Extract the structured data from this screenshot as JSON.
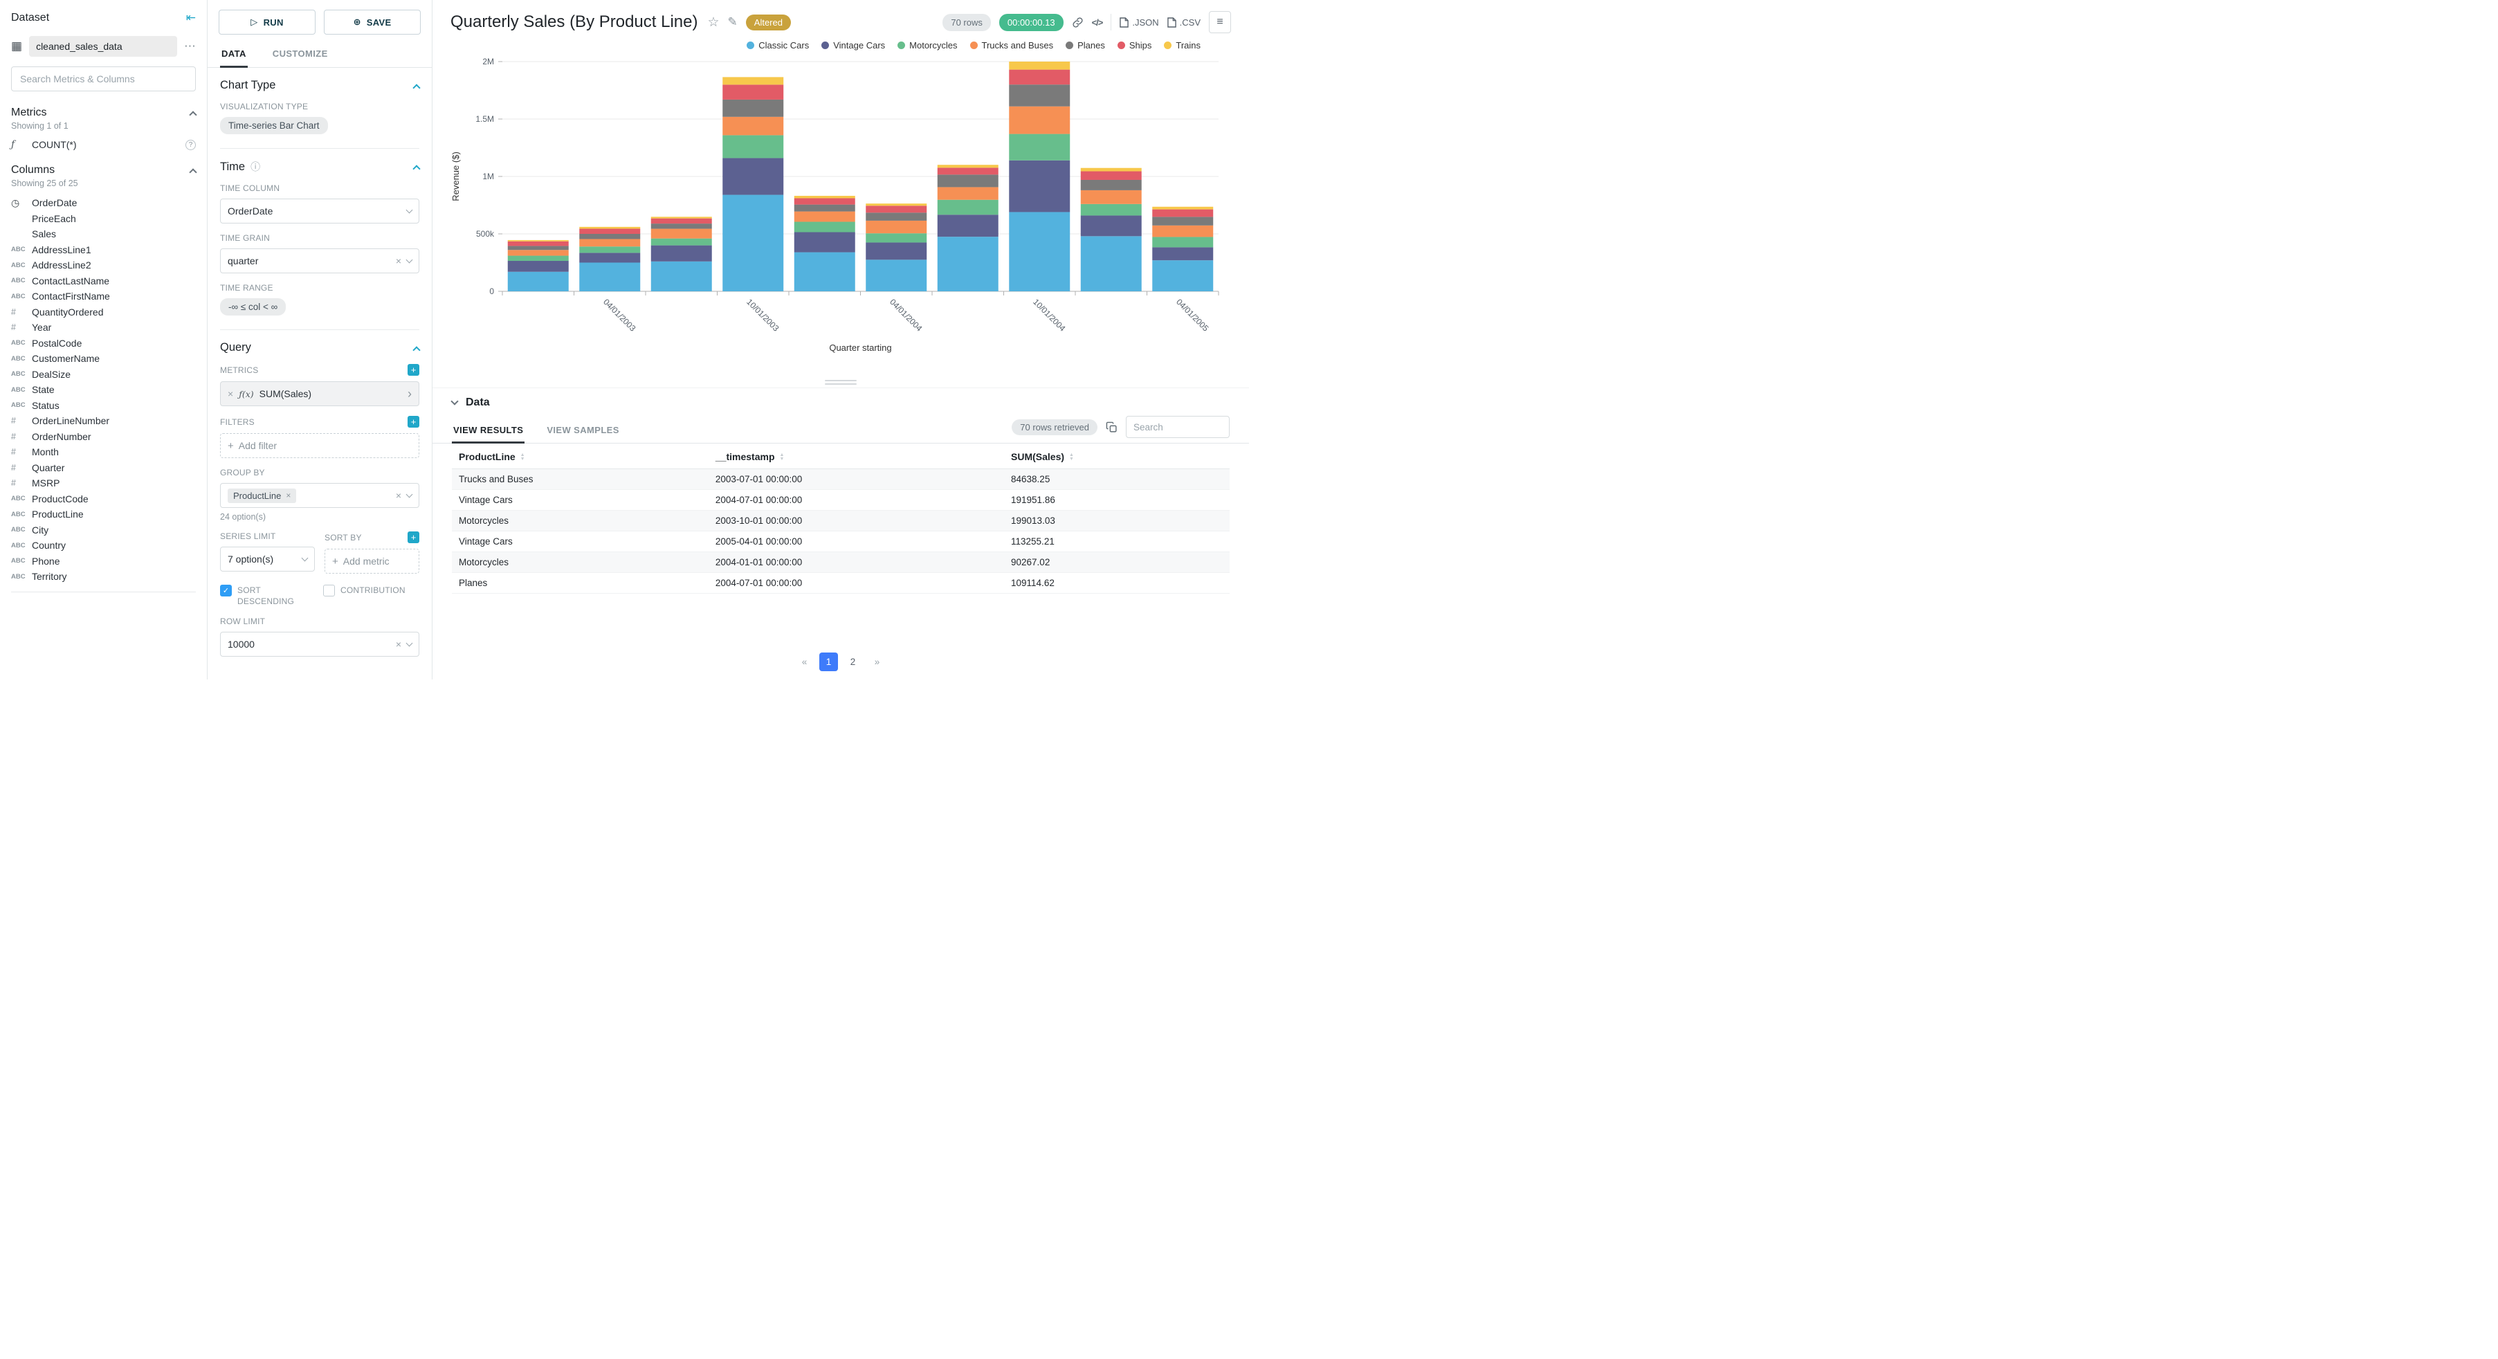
{
  "colors": {
    "accent": "#20A7C9",
    "altered_badge": "#C9A23C",
    "timer_badge": "#45BB8E",
    "pagination_active": "#3E7BFA",
    "checkbox_checked": "#2E9DF5"
  },
  "icons": {
    "collapse": "⇤",
    "dataset_table": "▦",
    "more": "⋯",
    "function": "ƒ",
    "help": "?",
    "clock": "◷",
    "abc": "ABC",
    "hash": "#",
    "play": "▷",
    "plus_circle": "⊕",
    "star": "☆",
    "edit": "✎",
    "code": "</>",
    "menu": "≡",
    "info": "ⓘ",
    "remove": "×",
    "plus": "+",
    "check": "✓",
    "sort_asc": "▲",
    "sort_desc": "▼",
    "caret_right": "›"
  },
  "dataset_panel": {
    "header": "Dataset",
    "dataset_name": "cleaned_sales_data",
    "search_placeholder": "Search Metrics & Columns",
    "metrics_title": "Metrics",
    "metrics_showing": "Showing 1 of 1",
    "metric_items": [
      {
        "icon": "function",
        "name": "COUNT(*)"
      }
    ],
    "columns_title": "Columns",
    "columns_showing": "Showing 25 of 25",
    "column_items": [
      {
        "icon": "clock",
        "name": "OrderDate"
      },
      {
        "icon": "none",
        "name": "PriceEach"
      },
      {
        "icon": "none",
        "name": "Sales"
      },
      {
        "icon": "abc",
        "name": "AddressLine1"
      },
      {
        "icon": "abc",
        "name": "AddressLine2"
      },
      {
        "icon": "abc",
        "name": "ContactLastName"
      },
      {
        "icon": "abc",
        "name": "ContactFirstName"
      },
      {
        "icon": "num",
        "name": "QuantityOrdered"
      },
      {
        "icon": "num",
        "name": "Year"
      },
      {
        "icon": "abc",
        "name": "PostalCode"
      },
      {
        "icon": "abc",
        "name": "CustomerName"
      },
      {
        "icon": "abc",
        "name": "DealSize"
      },
      {
        "icon": "abc",
        "name": "State"
      },
      {
        "icon": "abc",
        "name": "Status"
      },
      {
        "icon": "num",
        "name": "OrderLineNumber"
      },
      {
        "icon": "num",
        "name": "OrderNumber"
      },
      {
        "icon": "num",
        "name": "Month"
      },
      {
        "icon": "num",
        "name": "Quarter"
      },
      {
        "icon": "num",
        "name": "MSRP"
      },
      {
        "icon": "abc",
        "name": "ProductCode"
      },
      {
        "icon": "abc",
        "name": "ProductLine"
      },
      {
        "icon": "abc",
        "name": "City"
      },
      {
        "icon": "abc",
        "name": "Country"
      },
      {
        "icon": "abc",
        "name": "Phone"
      },
      {
        "icon": "abc",
        "name": "Territory"
      }
    ]
  },
  "control_panel": {
    "run_label": "RUN",
    "save_label": "SAVE",
    "tabs": [
      {
        "label": "DATA",
        "active": true
      },
      {
        "label": "CUSTOMIZE",
        "active": false
      }
    ],
    "chart_type": {
      "title": "Chart Type",
      "viz_type_label": "VISUALIZATION TYPE",
      "viz_type_value": "Time-series Bar Chart"
    },
    "time": {
      "title": "Time",
      "time_column_label": "TIME COLUMN",
      "time_column_value": "OrderDate",
      "time_grain_label": "TIME GRAIN",
      "time_grain_value": "quarter",
      "time_range_label": "TIME RANGE",
      "time_range_value": "-∞ ≤ col < ∞"
    },
    "query": {
      "title": "Query",
      "metrics_label": "METRICS",
      "metric_prefix": "ƒ(x)",
      "metric_value": "SUM(Sales)",
      "filters_label": "FILTERS",
      "add_filter_label": "Add filter",
      "group_by_label": "GROUP BY",
      "group_by_tag": "ProductLine",
      "group_by_hint": "24 option(s)",
      "series_limit_label": "SERIES LIMIT",
      "series_limit_value": "7 option(s)",
      "sort_by_label": "SORT BY",
      "add_metric_label": "Add metric",
      "sort_descending_label": "SORT DESCENDING",
      "sort_descending_checked": true,
      "contribution_label": "CONTRIBUTION",
      "contribution_checked": false,
      "row_limit_label": "ROW LIMIT",
      "row_limit_value": "10000"
    }
  },
  "header": {
    "title": "Quarterly Sales (By Product Line)",
    "altered_badge": "Altered",
    "rows_badge": "70 rows",
    "timer_badge": "00:00:00.13",
    "json_label": ".JSON",
    "csv_label": ".CSV"
  },
  "chart_data": {
    "type": "bar",
    "stacked": true,
    "title": "Quarterly Sales (By Product Line)",
    "xlabel": "Quarter starting",
    "ylabel": "Revenue ($)",
    "ylim": [
      0,
      2000000
    ],
    "grid": true,
    "legend_position": "top-right",
    "y_ticks": [
      {
        "v": 0,
        "label": "0"
      },
      {
        "v": 500000,
        "label": "500k"
      },
      {
        "v": 1000000,
        "label": "1M"
      },
      {
        "v": 1500000,
        "label": "1.5M"
      },
      {
        "v": 2000000,
        "label": "2M"
      }
    ],
    "categories": [
      "2003-01-01",
      "2003-04-01",
      "2003-07-01",
      "2003-10-01",
      "2004-01-01",
      "2004-04-01",
      "2004-07-01",
      "2004-10-01",
      "2005-01-01",
      "2005-04-01"
    ],
    "x_tick_labels": [
      "",
      "04/01/2003",
      "",
      "10/01/2003",
      "",
      "04/01/2004",
      "",
      "10/01/2004",
      "",
      "04/01/2005"
    ],
    "series": [
      {
        "name": "Classic Cars",
        "color": "#53B2DE",
        "values": [
          170000,
          250000,
          260000,
          840000,
          340000,
          275000,
          475000,
          690000,
          480000,
          270000
        ]
      },
      {
        "name": "Vintage Cars",
        "color": "#5C6191",
        "values": [
          95000,
          85000,
          140000,
          320000,
          175000,
          150000,
          191951.86,
          450000,
          180000,
          113255.21
        ]
      },
      {
        "name": "Motorcycles",
        "color": "#67BE8C",
        "values": [
          45000,
          55000,
          60000,
          199013.03,
          90267.02,
          80000,
          130000,
          230000,
          100000,
          90000
        ]
      },
      {
        "name": "Trucks and Buses",
        "color": "#F69054",
        "values": [
          50000,
          65000,
          84638.25,
          160000,
          90000,
          110000,
          110000,
          240000,
          120000,
          100000
        ]
      },
      {
        "name": "Planes",
        "color": "#7A7A7A",
        "values": [
          35000,
          45000,
          45000,
          150000,
          60000,
          70000,
          109114.62,
          190000,
          90000,
          75000
        ]
      },
      {
        "name": "Ships",
        "color": "#E25B66",
        "values": [
          40000,
          45000,
          45000,
          130000,
          55000,
          60000,
          60000,
          130000,
          75000,
          65000
        ]
      },
      {
        "name": "Trains",
        "color": "#F7C84B",
        "values": [
          11000,
          16000,
          14000,
          66000,
          21000,
          19000,
          25000,
          70000,
          29000,
          23000
        ]
      }
    ]
  },
  "data_section": {
    "title": "Data",
    "tabs": [
      {
        "label": "VIEW RESULTS",
        "active": true
      },
      {
        "label": "VIEW SAMPLES",
        "active": false
      }
    ],
    "rows_retrieved": "70 rows retrieved",
    "search_placeholder": "Search",
    "table": {
      "headers": [
        "ProductLine",
        "__timestamp",
        "SUM(Sales)"
      ],
      "rows": [
        [
          "Trucks and Buses",
          "2003-07-01 00:00:00",
          "84638.25"
        ],
        [
          "Vintage Cars",
          "2004-07-01 00:00:00",
          "191951.86"
        ],
        [
          "Motorcycles",
          "2003-10-01 00:00:00",
          "199013.03"
        ],
        [
          "Vintage Cars",
          "2005-04-01 00:00:00",
          "113255.21"
        ],
        [
          "Motorcycles",
          "2004-01-01 00:00:00",
          "90267.02"
        ],
        [
          "Planes",
          "2004-07-01 00:00:00",
          "109114.62"
        ]
      ]
    },
    "pagination": {
      "prev": "«",
      "next": "»",
      "pages": [
        "1",
        "2"
      ],
      "active": "1"
    }
  }
}
